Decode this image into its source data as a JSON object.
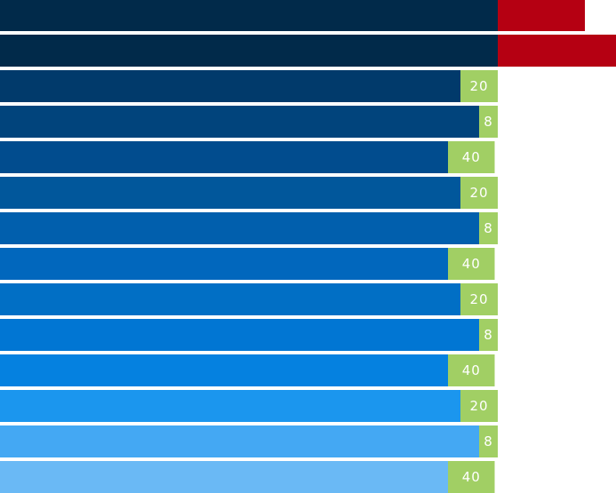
{
  "chart_data": {
    "type": "bar",
    "orientation": "horizontal",
    "stacked": true,
    "rows": [
      {
        "segments": [
          {
            "value": 80,
            "color": "#012a4a"
          },
          {
            "value": 14,
            "color": "#b50012",
            "label": ""
          }
        ]
      },
      {
        "segments": [
          {
            "value": 80,
            "color": "#012a4a"
          },
          {
            "value": 19,
            "color": "#b50012",
            "label": ""
          }
        ]
      },
      {
        "segments": [
          {
            "value": 74,
            "color": "#013a6b"
          },
          {
            "value": 6,
            "color": "#a1cf64",
            "label": "20"
          }
        ]
      },
      {
        "segments": [
          {
            "value": 77,
            "color": "#01447c"
          },
          {
            "value": 3,
            "color": "#a1cf64",
            "label": "8"
          }
        ]
      },
      {
        "segments": [
          {
            "value": 72,
            "color": "#014c8e"
          },
          {
            "value": 7.5,
            "color": "#a1cf64",
            "label": "40"
          }
        ]
      },
      {
        "segments": [
          {
            "value": 74,
            "color": "#01579b"
          },
          {
            "value": 6,
            "color": "#a1cf64",
            "label": "20"
          }
        ]
      },
      {
        "segments": [
          {
            "value": 77,
            "color": "#015fad"
          },
          {
            "value": 3,
            "color": "#a1cf64",
            "label": "8"
          }
        ]
      },
      {
        "segments": [
          {
            "value": 72,
            "color": "#0167bd"
          },
          {
            "value": 7.5,
            "color": "#a1cf64",
            "label": "40"
          }
        ]
      },
      {
        "segments": [
          {
            "value": 74,
            "color": "#016fc5"
          },
          {
            "value": 6,
            "color": "#a1cf64",
            "label": "20"
          }
        ]
      },
      {
        "segments": [
          {
            "value": 77,
            "color": "#0176d3"
          },
          {
            "value": 3,
            "color": "#a1cf64",
            "label": "8"
          }
        ]
      },
      {
        "segments": [
          {
            "value": 72,
            "color": "#0581e0"
          },
          {
            "value": 7.5,
            "color": "#a1cf64",
            "label": "40"
          }
        ]
      },
      {
        "segments": [
          {
            "value": 74,
            "color": "#1b96ee"
          },
          {
            "value": 6,
            "color": "#a1cf64",
            "label": "20"
          }
        ]
      },
      {
        "segments": [
          {
            "value": 77,
            "color": "#44a8f3"
          },
          {
            "value": 3,
            "color": "#a1cf64",
            "label": "8"
          }
        ]
      },
      {
        "segments": [
          {
            "value": 72,
            "color": "#6ab9f5"
          },
          {
            "value": 7.5,
            "color": "#a1cf64",
            "label": "40"
          }
        ]
      }
    ],
    "xlim": [
      0,
      99
    ],
    "grid": false,
    "legend": "none"
  }
}
